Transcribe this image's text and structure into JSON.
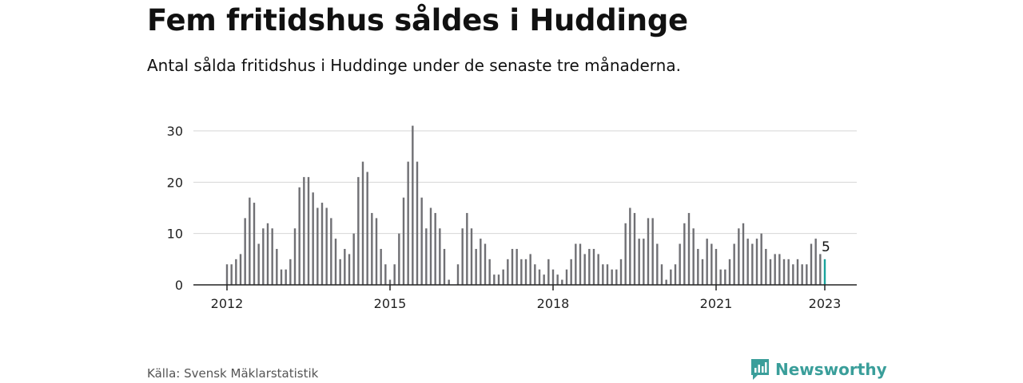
{
  "title": "Fem fritidshus såldes i Huddinge",
  "subtitle": "Antal sålda fritidshus i Huddinge under de senaste tre månaderna.",
  "source": "Källa: Svensk Mäklarstatistik",
  "brand": "Newsworthy",
  "colors": {
    "bar": "#707074",
    "highlight": "#1aa39c",
    "grid": "#d6d6d6",
    "axis": "#222222",
    "brand": "#3a9e9a"
  },
  "chart_data": {
    "type": "bar",
    "x_start": "2012-01",
    "x_end": "2023-01",
    "x_ticks": [
      "2012",
      "2015",
      "2018",
      "2021",
      "2023"
    ],
    "y_ticks": [
      "0",
      "10",
      "20",
      "30"
    ],
    "ylim": [
      0,
      32
    ],
    "grid": true,
    "highlight_label": "5",
    "values": [
      4,
      4,
      5,
      6,
      13,
      17,
      16,
      8,
      11,
      12,
      11,
      7,
      3,
      3,
      5,
      11,
      19,
      21,
      21,
      18,
      15,
      16,
      15,
      13,
      9,
      5,
      7,
      6,
      10,
      21,
      24,
      22,
      14,
      13,
      7,
      4,
      1,
      4,
      10,
      17,
      24,
      31,
      24,
      17,
      11,
      15,
      14,
      11,
      7,
      1,
      0,
      4,
      11,
      14,
      11,
      7,
      9,
      8,
      5,
      2,
      2,
      3,
      5,
      7,
      7,
      5,
      5,
      6,
      4,
      3,
      2,
      5,
      3,
      2,
      1,
      3,
      5,
      8,
      8,
      6,
      7,
      7,
      6,
      4,
      4,
      3,
      3,
      5,
      12,
      15,
      14,
      9,
      9,
      13,
      13,
      8,
      4,
      1,
      3,
      4,
      8,
      12,
      14,
      11,
      7,
      5,
      9,
      8,
      7,
      3,
      3,
      5,
      8,
      11,
      12,
      9,
      8,
      9,
      10,
      7,
      5,
      6,
      6,
      5,
      5,
      4,
      5,
      4,
      4,
      8,
      9,
      6,
      5
    ]
  }
}
